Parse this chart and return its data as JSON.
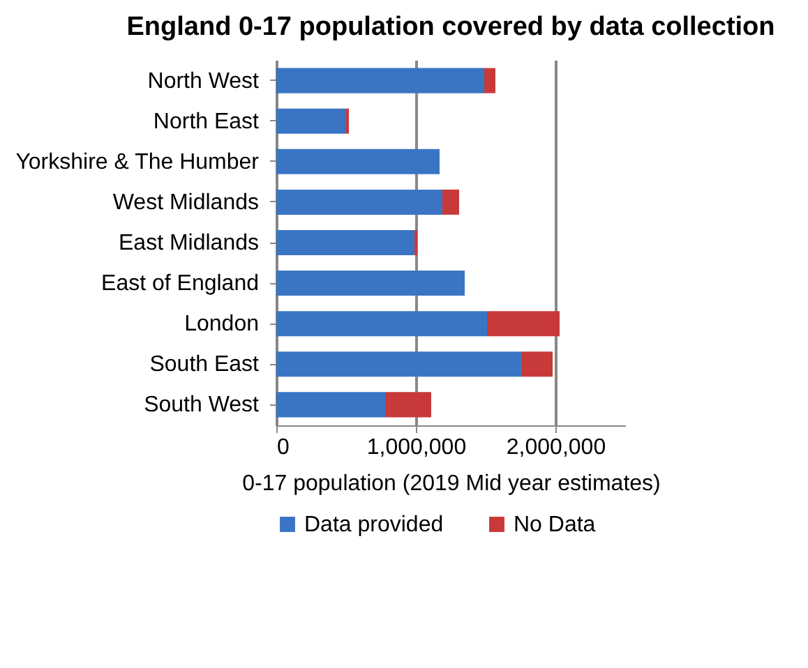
{
  "chart_data": {
    "type": "bar",
    "orientation": "horizontal",
    "stacked": true,
    "title": "England 0-17 population covered by data collection",
    "xlabel": "0-17 population (2019 Mid year estimates)",
    "categories": [
      "North West",
      "North East",
      "Yorkshire & The Humber",
      "West Midlands",
      "East Midlands",
      "East of England",
      "London",
      "South East",
      "South West"
    ],
    "series": [
      {
        "name": "Data provided",
        "color": "#3a75c4",
        "values": [
          1490000,
          500000,
          1170000,
          1190000,
          990000,
          1350000,
          1510000,
          1760000,
          780000
        ]
      },
      {
        "name": "No Data",
        "color": "#c83a3a",
        "values": [
          80000,
          20000,
          0,
          120000,
          20000,
          0,
          520000,
          220000,
          330000
        ]
      }
    ],
    "xlim": [
      0,
      2500000
    ],
    "xticks": [
      0,
      {
        "value": 1000000,
        "label": "1,000,000"
      },
      {
        "value": 2000000,
        "label": "2,000,000"
      }
    ],
    "grid": "x",
    "legend": "bottom"
  }
}
